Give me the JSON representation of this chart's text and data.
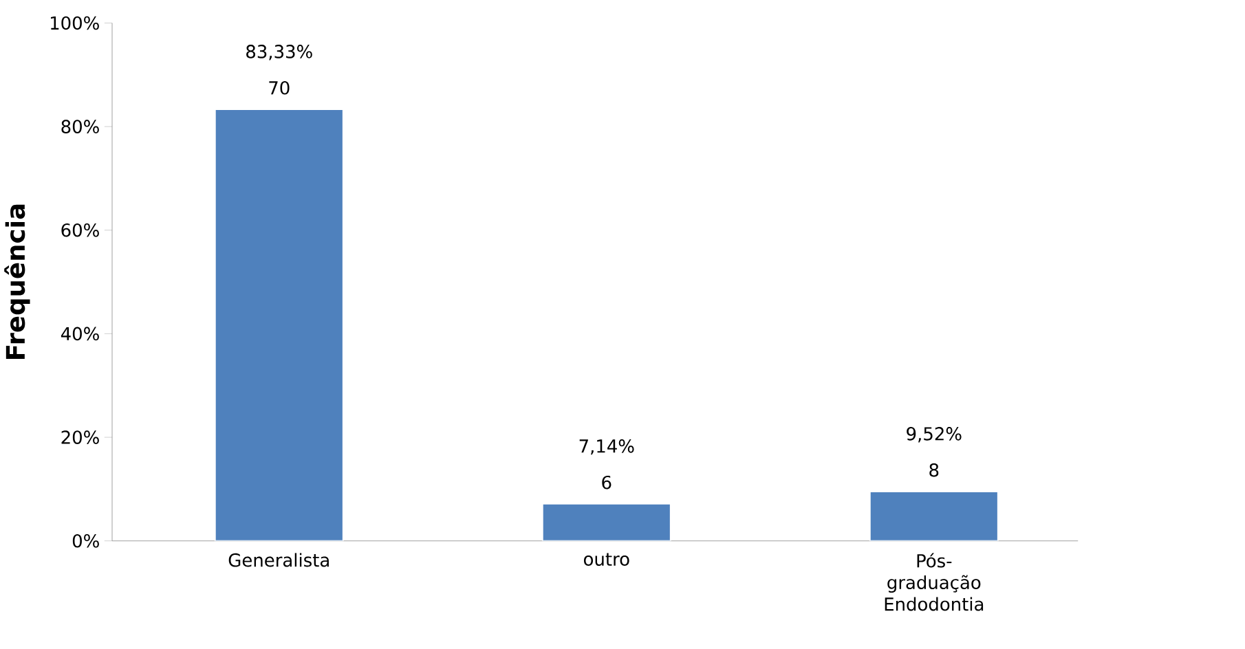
{
  "chart_data": {
    "type": "bar",
    "ylabel": "Frequência",
    "categories": [
      "Generalista",
      "outro",
      "Pós-graduação Endodontia"
    ],
    "values": [
      83.33,
      7.14,
      9.52
    ],
    "color": "#4f81bd",
    "value_labels": [
      "83,33%",
      "7,14%",
      "9,52%"
    ],
    "annotations": [
      {
        "text": "70",
        "y": 83.33
      },
      {
        "text": "6",
        "y": 7.14
      },
      {
        "text": "8",
        "y": 9.52
      }
    ],
    "ylim": [
      0,
      100
    ],
    "yticks": [
      {
        "value": 0,
        "label": "0%"
      },
      {
        "value": 20,
        "label": "20%"
      },
      {
        "value": 40,
        "label": "40%"
      },
      {
        "value": 60,
        "label": "60%"
      },
      {
        "value": 80,
        "label": "80%"
      },
      {
        "value": 100,
        "label": "100%"
      }
    ],
    "grid": false
  }
}
